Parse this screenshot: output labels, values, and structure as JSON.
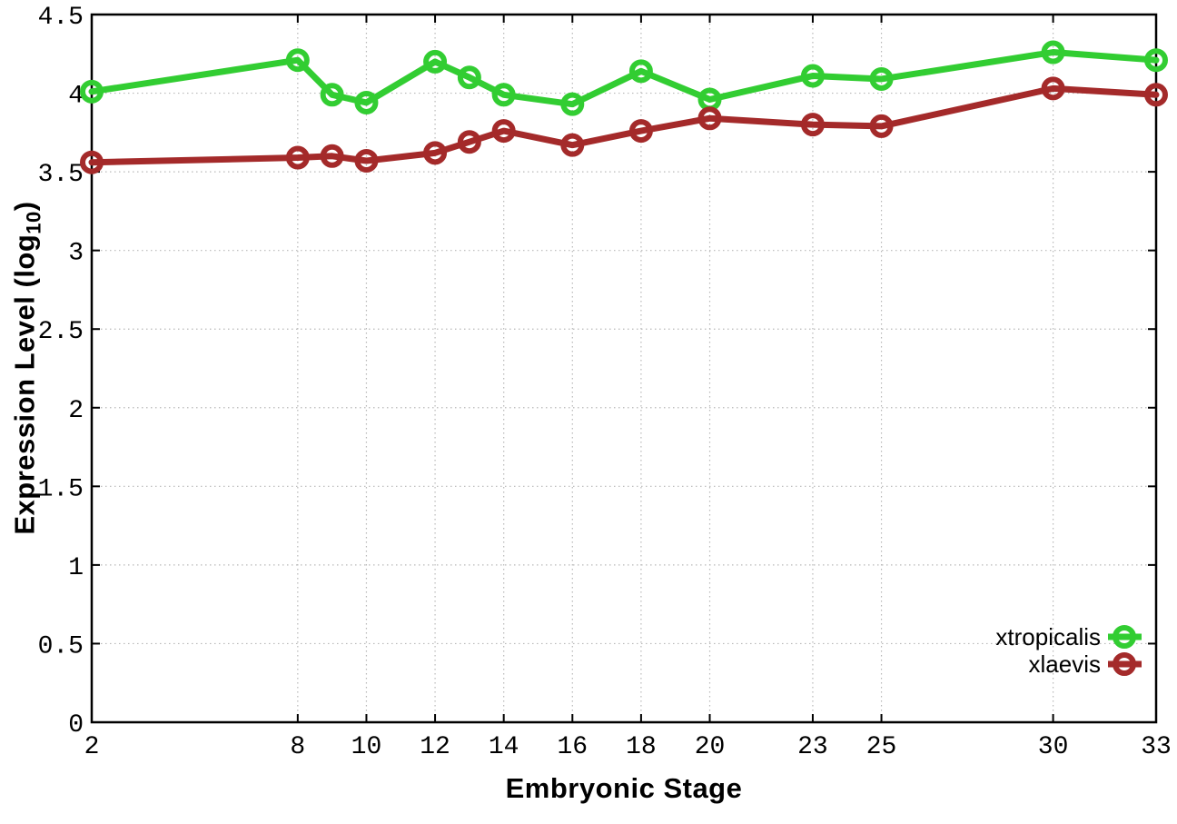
{
  "colors": {
    "background": "#ffffff",
    "grid": "#b8b8b8",
    "axis": "#000000",
    "text": "#000000"
  },
  "chart_data": {
    "type": "line",
    "title": "",
    "xlabel": "Embryonic Stage",
    "ylabel_prefix": "Expression Level (log",
    "ylabel_subscript": "10",
    "ylabel_suffix": ")",
    "xlim": [
      2,
      33
    ],
    "ylim": [
      0,
      4.5
    ],
    "grid": true,
    "legend_position": "inside-bottom-right",
    "x": [
      2,
      8,
      9,
      10,
      12,
      13,
      14,
      16,
      18,
      20,
      23,
      25,
      30,
      33
    ],
    "xtick_labels": [
      2,
      8,
      10,
      12,
      14,
      16,
      18,
      20,
      23,
      25,
      30,
      33
    ],
    "ytick_values": [
      0,
      0.5,
      1,
      1.5,
      2,
      2.5,
      3,
      3.5,
      4,
      4.5
    ],
    "ytick_labels": [
      "0",
      "0.5",
      "1",
      "1.5",
      "2",
      "2.5",
      "3",
      "3.5",
      "4",
      "4.5"
    ],
    "series": [
      {
        "name": "xtropicalis",
        "color": "#32cd32",
        "marker": "open-circle",
        "values": [
          4.01,
          4.21,
          3.99,
          3.94,
          4.2,
          4.1,
          3.99,
          3.93,
          4.14,
          3.96,
          4.11,
          4.09,
          4.26,
          4.21
        ]
      },
      {
        "name": "xlaevis",
        "color": "#a42a2a",
        "marker": "open-circle",
        "values": [
          3.56,
          3.59,
          3.6,
          3.57,
          3.62,
          3.69,
          3.76,
          3.67,
          3.76,
          3.84,
          3.8,
          3.79,
          4.03,
          3.99
        ]
      }
    ]
  }
}
